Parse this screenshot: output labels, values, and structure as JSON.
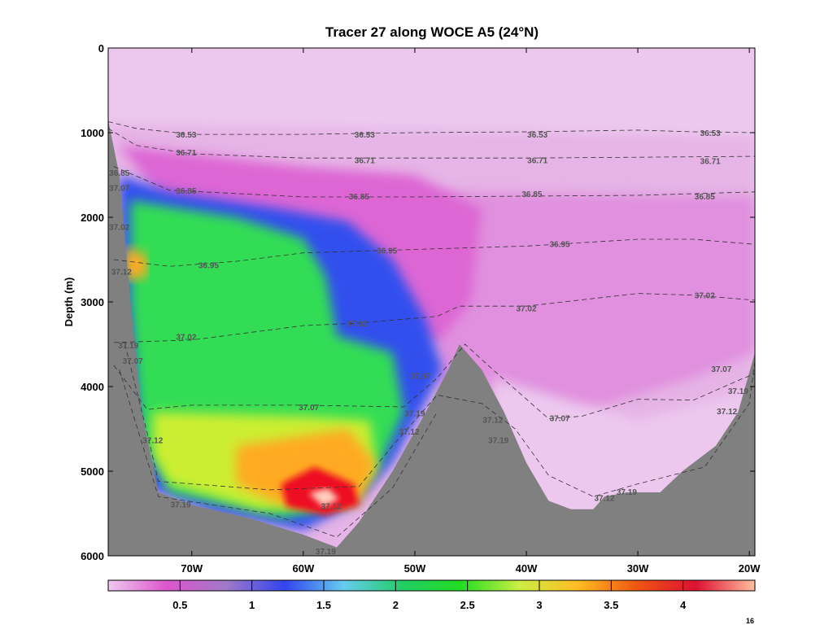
{
  "chart_data": {
    "type": "heatmap",
    "title": "Tracer 27 along WOCE A5 (24°N)",
    "ylabel": "Depth (m)",
    "xlabel": "",
    "xlim": [
      -77.5,
      -19.5
    ],
    "ylim": [
      0,
      6000
    ],
    "y_inverted": true,
    "x_ticks": [
      {
        "value": -70,
        "label": "70W"
      },
      {
        "value": -60,
        "label": "60W"
      },
      {
        "value": -50,
        "label": "50W"
      },
      {
        "value": -40,
        "label": "40W"
      },
      {
        "value": -30,
        "label": "30W"
      },
      {
        "value": -20,
        "label": "20W"
      }
    ],
    "y_ticks": [
      {
        "value": 0,
        "label": "0"
      },
      {
        "value": 1000,
        "label": "1000"
      },
      {
        "value": 2000,
        "label": "2000"
      },
      {
        "value": 3000,
        "label": "3000"
      },
      {
        "value": 4000,
        "label": "4000"
      },
      {
        "value": 5000,
        "label": "5000"
      },
      {
        "value": 6000,
        "label": "6000"
      }
    ],
    "colorbar": {
      "range": [
        0,
        4.5
      ],
      "ticks": [
        {
          "value": 0.5,
          "label": "0.5"
        },
        {
          "value": 1,
          "label": "1"
        },
        {
          "value": 1.5,
          "label": "1.5"
        },
        {
          "value": 2,
          "label": "2"
        },
        {
          "value": 2.5,
          "label": "2.5"
        },
        {
          "value": 3,
          "label": "3"
        },
        {
          "value": 3.5,
          "label": "3.5"
        },
        {
          "value": 4,
          "label": "4"
        }
      ],
      "colors": [
        "#eec9ee",
        "#dd55cc",
        "#a07ac8",
        "#3344ee",
        "#66ccee",
        "#22cc66",
        "#22dd22",
        "#ccee44",
        "#ffbb22",
        "#ee5511",
        "#dd1133",
        "#ffc0a0"
      ]
    },
    "field_regions": [
      {
        "name": "surface",
        "value": 0.1,
        "color": "#ecc8ee"
      },
      {
        "name": "upper",
        "value": 0.2,
        "color": "#e6b4e6"
      },
      {
        "name": "magenta-core",
        "value": 0.35,
        "color": "#dd66d4"
      },
      {
        "name": "east-deep",
        "value": 0.3,
        "color": "#e090de"
      },
      {
        "name": "east-bottom",
        "value": 0.15,
        "color": "#ecc8ee"
      },
      {
        "name": "blue-band",
        "value": 0.9,
        "color": "#3350ee"
      },
      {
        "name": "green-west",
        "value": 1.8,
        "color": "#33dd55"
      },
      {
        "name": "orange-core-west",
        "value": 3.0,
        "color": "#ffaa22"
      },
      {
        "name": "yellow-bottom",
        "value": 2.6,
        "color": "#ccee33"
      },
      {
        "name": "red-core",
        "value": 3.8,
        "color": "#ee1122"
      },
      {
        "name": "red-peak",
        "value": 4.4,
        "color": "#ffd0c0"
      }
    ],
    "contours": [
      {
        "level": "36.53",
        "points": [
          [
            -77.5,
            870
          ],
          [
            -75,
            950
          ],
          [
            -70,
            1020
          ],
          [
            -60,
            1020
          ],
          [
            -50,
            1000
          ],
          [
            -40,
            990
          ],
          [
            -30,
            970
          ],
          [
            -25,
            990
          ],
          [
            -19.5,
            1000
          ]
        ]
      },
      {
        "level": "36.71",
        "points": [
          [
            -77.5,
            950
          ],
          [
            -75,
            1150
          ],
          [
            -70,
            1250
          ],
          [
            -60,
            1300
          ],
          [
            -50,
            1300
          ],
          [
            -40,
            1300
          ],
          [
            -30,
            1290
          ],
          [
            -19.5,
            1280
          ]
        ]
      },
      {
        "level": "36.85",
        "points": [
          [
            -77,
            1400
          ],
          [
            -72,
            1680
          ],
          [
            -60,
            1760
          ],
          [
            -50,
            1760
          ],
          [
            -40,
            1750
          ],
          [
            -30,
            1740
          ],
          [
            -19.5,
            1700
          ]
        ]
      },
      {
        "level": "36.95",
        "points": [
          [
            -77,
            2500
          ],
          [
            -72,
            2580
          ],
          [
            -66,
            2520
          ],
          [
            -60,
            2420
          ],
          [
            -50,
            2380
          ],
          [
            -40,
            2340
          ],
          [
            -30,
            2260
          ],
          [
            -25,
            2260
          ],
          [
            -19.5,
            2320
          ]
        ]
      },
      {
        "level": "37.02",
        "points": [
          [
            -77,
            3480
          ],
          [
            -70,
            3450
          ],
          [
            -60,
            3280
          ],
          [
            -55,
            3250
          ],
          [
            -48,
            3170
          ],
          [
            -46,
            3050
          ],
          [
            -40,
            3050
          ],
          [
            -30,
            2900
          ],
          [
            -25,
            2920
          ],
          [
            -19.5,
            2980
          ]
        ]
      },
      {
        "level": "37.07",
        "points": [
          [
            -77,
            3750
          ],
          [
            -74,
            4270
          ],
          [
            -70,
            4220
          ],
          [
            -60,
            4220
          ],
          [
            -51,
            4240
          ],
          [
            -48,
            3900
          ],
          [
            -45.5,
            3500
          ],
          [
            -43,
            3800
          ],
          [
            -38,
            4380
          ],
          [
            -35,
            4350
          ],
          [
            -30,
            4150
          ],
          [
            -25,
            4160
          ],
          [
            -20.5,
            3900
          ],
          [
            -19.5,
            3850
          ]
        ]
      },
      {
        "level": "37.12",
        "points": [
          [
            -76,
            3500
          ],
          [
            -74,
            4550
          ],
          [
            -73,
            5120
          ],
          [
            -63,
            5220
          ],
          [
            -55,
            5180
          ],
          [
            -52,
            4700
          ],
          [
            -48,
            4100
          ],
          [
            -44,
            4200
          ],
          [
            -41,
            4500
          ],
          [
            -38,
            5050
          ],
          [
            -34,
            5300
          ],
          [
            -30,
            5150
          ],
          [
            -24,
            4950
          ],
          [
            -20,
            4200
          ],
          [
            -19.5,
            3700
          ]
        ]
      },
      {
        "level": "37.19",
        "points": [
          [
            -76.5,
            3800
          ],
          [
            -73,
            5300
          ],
          [
            -63,
            5500
          ],
          [
            -57,
            5780
          ],
          [
            -52,
            5200
          ],
          [
            -48,
            4300
          ]
        ]
      }
    ],
    "contour_labels": [
      {
        "text": "36.53",
        "x": -70.5,
        "y": 1030
      },
      {
        "text": "36.53",
        "x": -54.5,
        "y": 1030
      },
      {
        "text": "36.53",
        "x": -39,
        "y": 1030
      },
      {
        "text": "36.53",
        "x": -23.5,
        "y": 1010
      },
      {
        "text": "36.71",
        "x": -70.5,
        "y": 1240
      },
      {
        "text": "36.71",
        "x": -54.5,
        "y": 1330
      },
      {
        "text": "36.71",
        "x": -39,
        "y": 1330
      },
      {
        "text": "36.71",
        "x": -23.5,
        "y": 1340
      },
      {
        "text": "36.85",
        "x": -76.5,
        "y": 1480
      },
      {
        "text": "36.85",
        "x": -70.5,
        "y": 1690
      },
      {
        "text": "36.85",
        "x": -55,
        "y": 1760
      },
      {
        "text": "36.85",
        "x": -39.5,
        "y": 1730
      },
      {
        "text": "36.85",
        "x": -24,
        "y": 1760
      },
      {
        "text": "37.07",
        "x": -76.5,
        "y": 1660
      },
      {
        "text": "37.02",
        "x": -76.5,
        "y": 2120
      },
      {
        "text": "37.12",
        "x": -76.3,
        "y": 2650
      },
      {
        "text": "36.95",
        "x": -68.5,
        "y": 2570
      },
      {
        "text": "36.95",
        "x": -52.5,
        "y": 2400
      },
      {
        "text": "36.95",
        "x": -37,
        "y": 2320
      },
      {
        "text": "37.02",
        "x": -70.5,
        "y": 3420
      },
      {
        "text": "37.02",
        "x": -55.2,
        "y": 3260
      },
      {
        "text": "37.02",
        "x": -40,
        "y": 3080
      },
      {
        "text": "37.02",
        "x": -24,
        "y": 2930
      },
      {
        "text": "37.19",
        "x": -75.7,
        "y": 3520
      },
      {
        "text": "37.07",
        "x": -75.3,
        "y": 3700
      },
      {
        "text": "37.07",
        "x": -59.5,
        "y": 4250
      },
      {
        "text": "37.07",
        "x": -49.5,
        "y": 3880
      },
      {
        "text": "37.07",
        "x": -37,
        "y": 4380
      },
      {
        "text": "37.07",
        "x": -22.5,
        "y": 3800
      },
      {
        "text": "37.12",
        "x": -73.5,
        "y": 4640
      },
      {
        "text": "37.19",
        "x": -50,
        "y": 4320
      },
      {
        "text": "37.12",
        "x": -50.5,
        "y": 4540
      },
      {
        "text": "37.12",
        "x": -43,
        "y": 4400
      },
      {
        "text": "37.19",
        "x": -42.5,
        "y": 4640
      },
      {
        "text": "37.12",
        "x": -22,
        "y": 4300
      },
      {
        "text": "37.19",
        "x": -21,
        "y": 4060
      },
      {
        "text": "37.12",
        "x": -57.5,
        "y": 5420
      },
      {
        "text": "37.19",
        "x": -71,
        "y": 5400
      },
      {
        "text": "37.12",
        "x": -33,
        "y": 5320
      },
      {
        "text": "37.19",
        "x": -31,
        "y": 5250
      },
      {
        "text": "37.19",
        "x": -58,
        "y": 5950
      }
    ],
    "bathymetry": [
      [
        -77.5,
        850
      ],
      [
        -76.5,
        1500
      ],
      [
        -75.5,
        3000
      ],
      [
        -74.5,
        4300
      ],
      [
        -73,
        5250
      ],
      [
        -70,
        5400
      ],
      [
        -65,
        5550
      ],
      [
        -60,
        5750
      ],
      [
        -57,
        5900
      ],
      [
        -55,
        5600
      ],
      [
        -52,
        5000
      ],
      [
        -49,
        4300
      ],
      [
        -47,
        3800
      ],
      [
        -46,
        3500
      ],
      [
        -44,
        3800
      ],
      [
        -42,
        4300
      ],
      [
        -40,
        4900
      ],
      [
        -38,
        5350
      ],
      [
        -36,
        5450
      ],
      [
        -34,
        5450
      ],
      [
        -33,
        5300
      ],
      [
        -31,
        5250
      ],
      [
        -28,
        5250
      ],
      [
        -26,
        5000
      ],
      [
        -23,
        4700
      ],
      [
        -21,
        4300
      ],
      [
        -19.5,
        3600
      ]
    ]
  },
  "footer": {
    "page_number": "16"
  }
}
